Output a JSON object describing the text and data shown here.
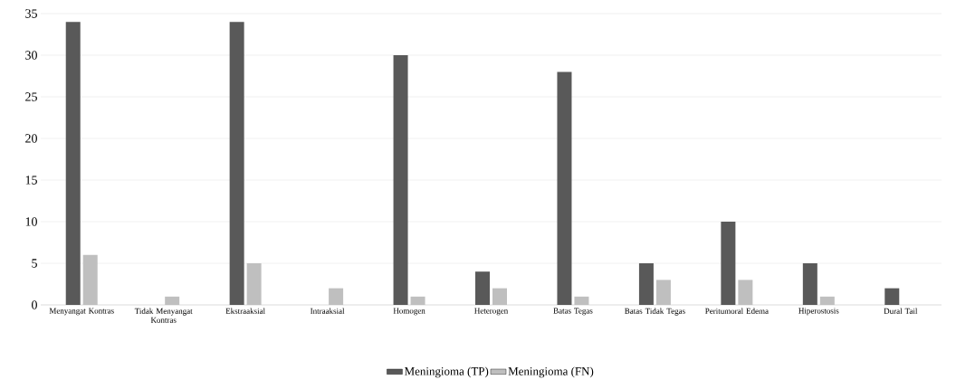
{
  "chart_data": {
    "type": "bar",
    "categories": [
      "Menyangat Kontras",
      "Tidak Menyangat Kontras",
      "Ekstraaksial",
      "Intraaksial",
      "Homogen",
      "Heterogen",
      "Batas Tegas",
      "Batas Tidak Tegas",
      "Peritumoral Edema",
      "Hiperostosis",
      "Dural Tail"
    ],
    "series": [
      {
        "name": "Meningioma (TP)",
        "color": "#595959",
        "values": [
          34,
          0,
          34,
          0,
          30,
          4,
          28,
          5,
          10,
          5,
          2
        ]
      },
      {
        "name": "Meningioma (FN)",
        "color": "#bfbfbf",
        "values": [
          6,
          1,
          5,
          2,
          1,
          2,
          1,
          3,
          3,
          1,
          0
        ]
      }
    ],
    "ylim": [
      0,
      35
    ],
    "yticks": [
      0,
      5,
      10,
      15,
      20,
      25,
      30,
      35
    ],
    "grid": "y",
    "legend": "bottom"
  }
}
